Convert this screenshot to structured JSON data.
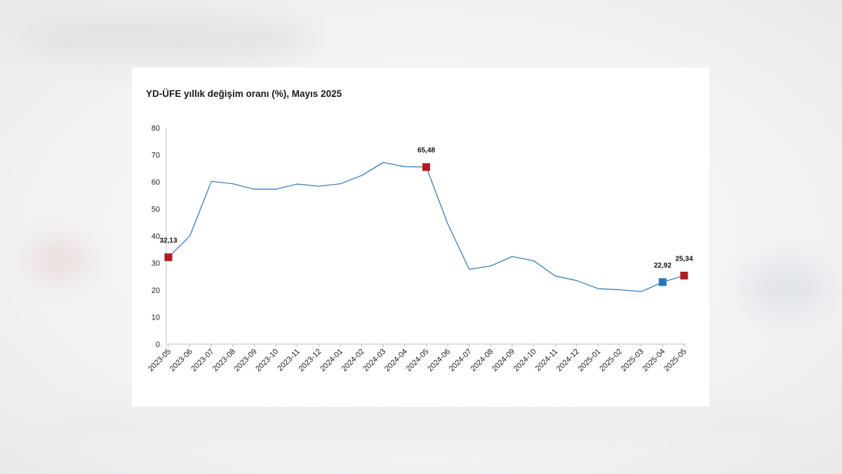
{
  "chart_data": {
    "type": "line",
    "title": "YD-ÜFE yıllık değişim oranı (%), Mayıs 2025",
    "xlabel": "",
    "ylabel": "",
    "ylim": [
      0,
      80
    ],
    "yticks": [
      "0",
      "10",
      "20",
      "30",
      "40",
      "50",
      "60",
      "70",
      "80"
    ],
    "grid": false,
    "categories": [
      "2023-05",
      "2023-06",
      "2023-07",
      "2023-08",
      "2023-09",
      "2023-10",
      "2023-11",
      "2023-12",
      "2024-01",
      "2024-02",
      "2024-03",
      "2024-04",
      "2024-05",
      "2024-06",
      "2024-07",
      "2024-08",
      "2024-09",
      "2024-10",
      "2024-11",
      "2024-12",
      "2025-01",
      "2025-02",
      "2025-03",
      "2025-04",
      "2025-05"
    ],
    "series": [
      {
        "values": [
          32.13,
          40.0,
          60.2,
          59.3,
          57.3,
          57.3,
          59.2,
          58.4,
          59.3,
          62.4,
          67.2,
          65.6,
          65.48,
          44.5,
          27.6,
          28.9,
          32.4,
          30.8,
          25.2,
          23.5,
          20.5,
          20.1,
          19.4,
          22.92,
          25.34
        ],
        "color": "#2e75b6"
      }
    ],
    "highlighted_points": [
      {
        "category": "2023-05",
        "value": 32.13,
        "label": "32,13",
        "color": "#b01c22"
      },
      {
        "category": "2024-05",
        "value": 65.48,
        "label": "65,48",
        "color": "#b01c22"
      },
      {
        "category": "2025-04",
        "value": 22.92,
        "label": "22,92",
        "color": "#2e75b6"
      },
      {
        "category": "2025-05",
        "value": 25.34,
        "label": "25,34",
        "color": "#b01c22"
      }
    ]
  }
}
